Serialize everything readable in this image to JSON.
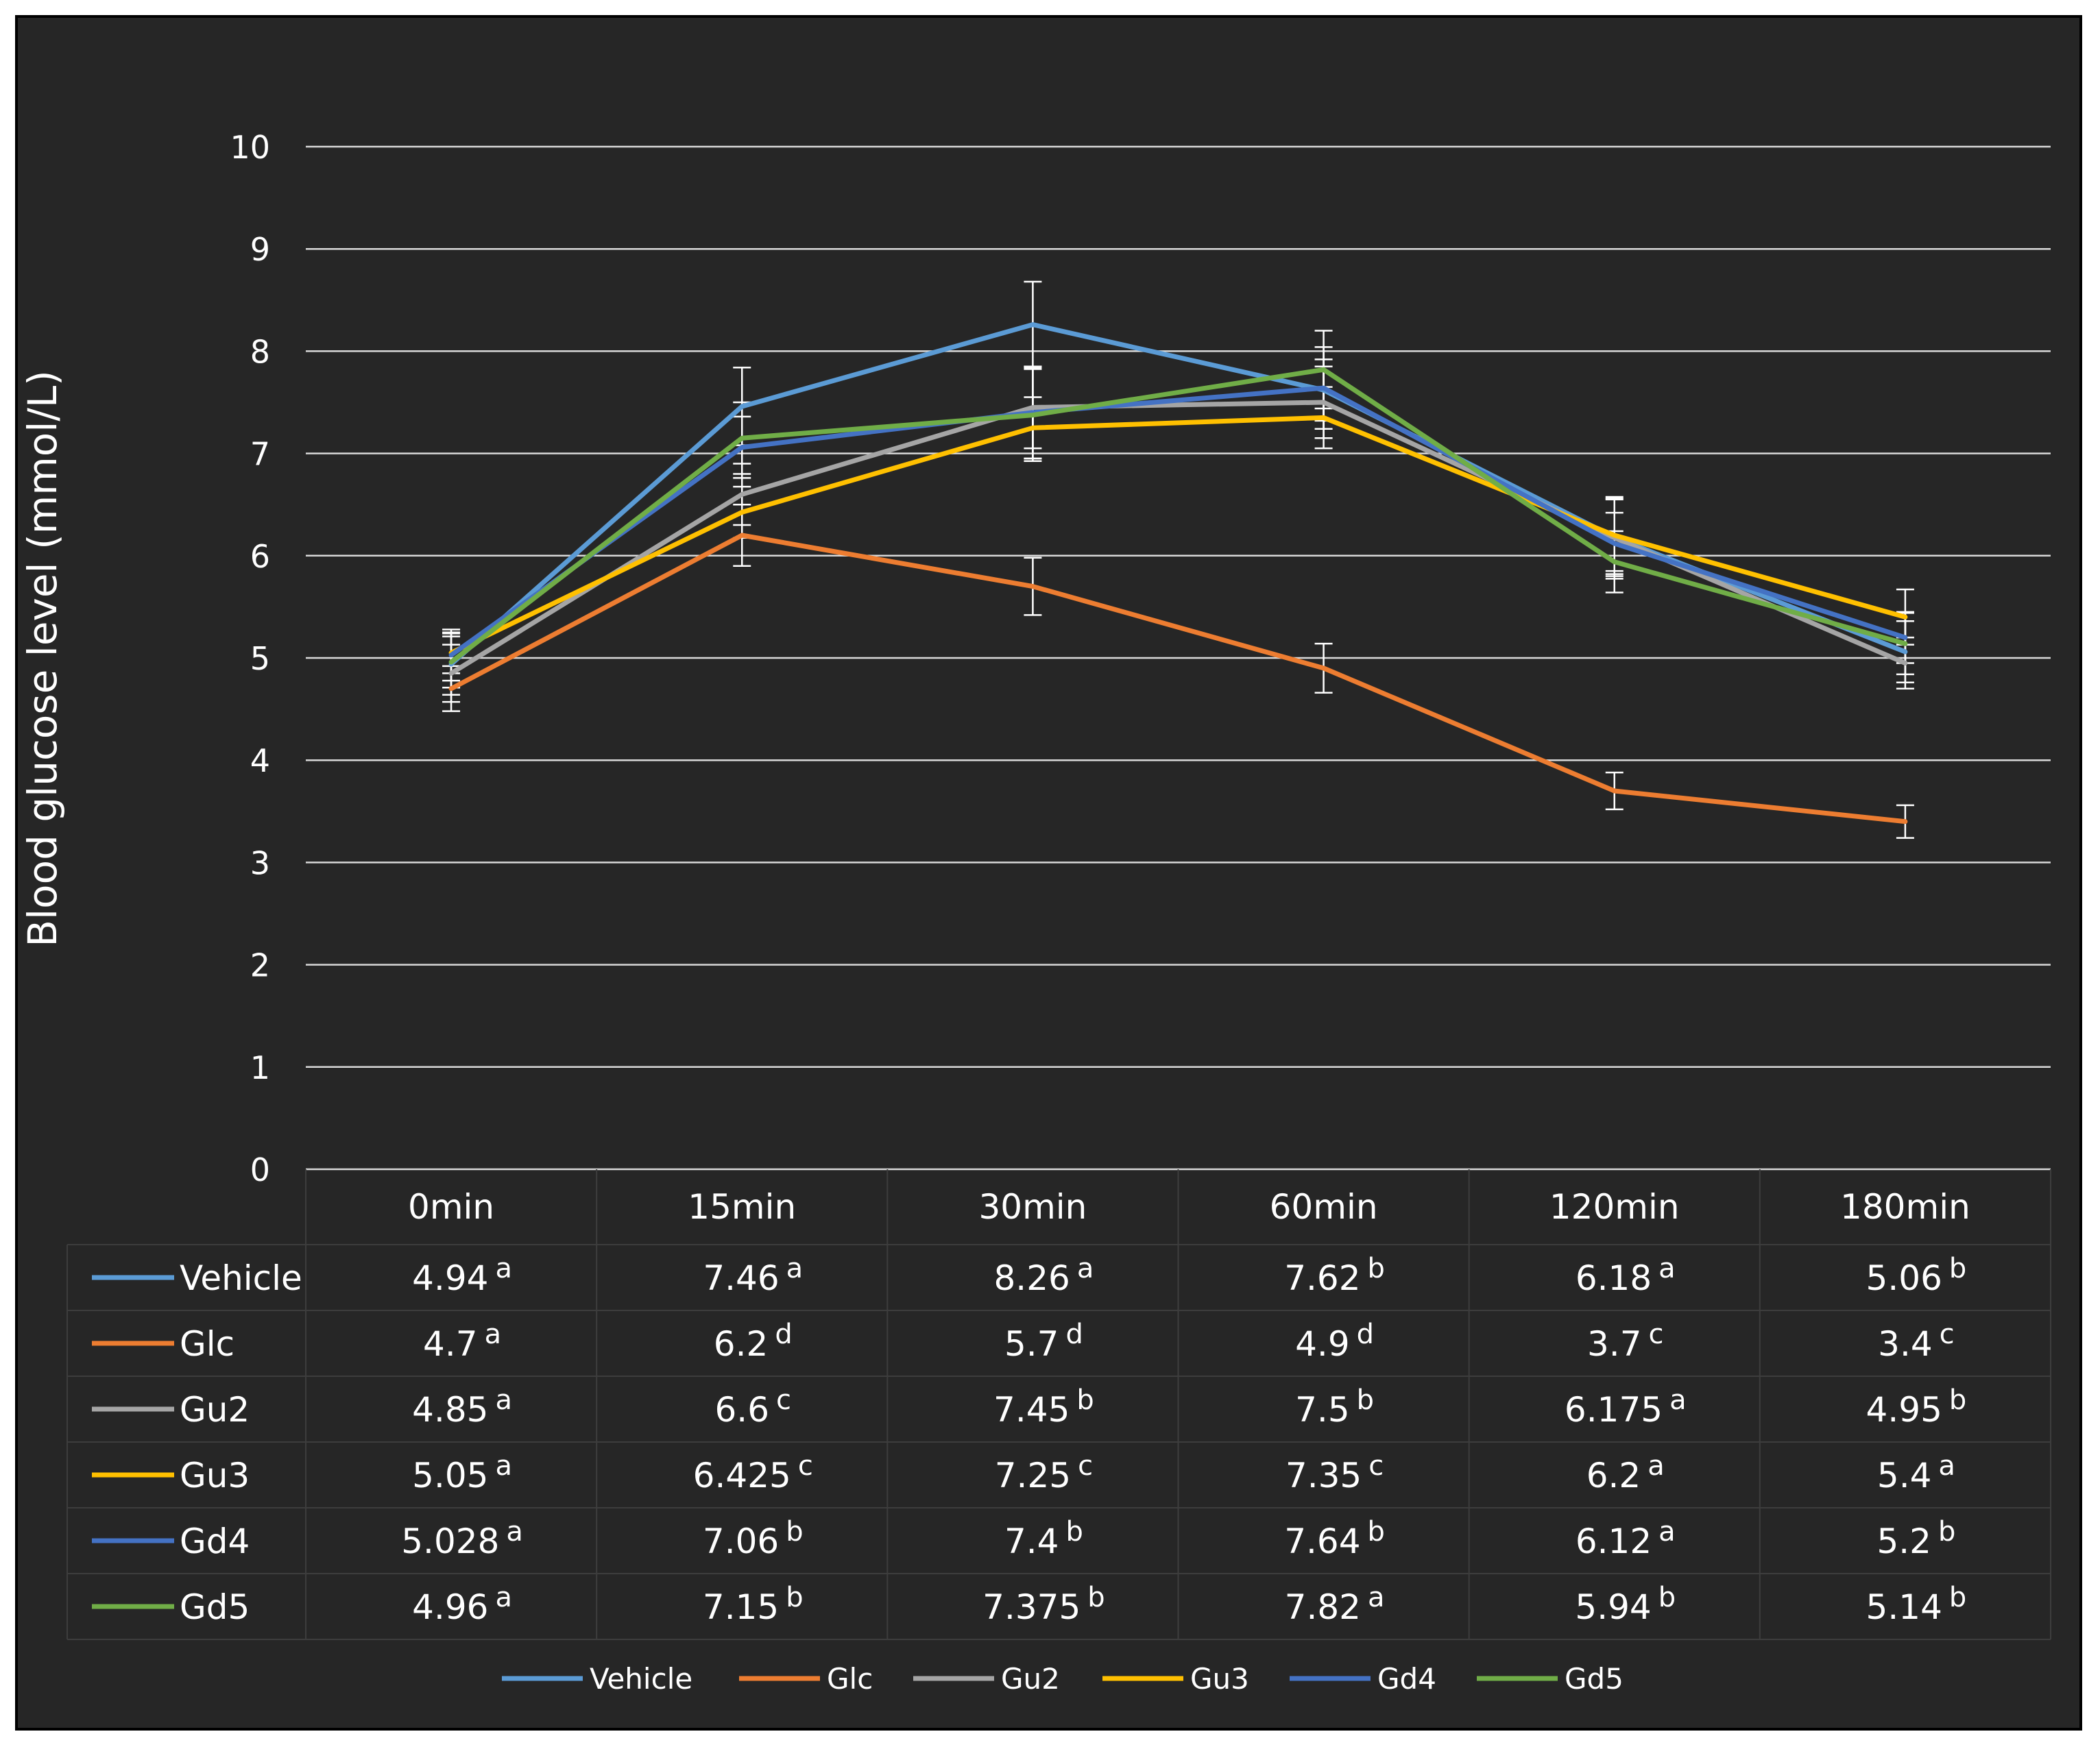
{
  "chart_data": {
    "type": "line",
    "title": "",
    "ylabel": "Blood glucose level (mmol/L)",
    "xlabel": "",
    "ylim": [
      0,
      10
    ],
    "yticks": [
      0,
      1,
      2,
      3,
      4,
      5,
      6,
      7,
      8,
      9,
      10
    ],
    "grid": true,
    "legend_position": "bottom",
    "categories": [
      "0min",
      "15min",
      "30min",
      "60min",
      "120min",
      "180min"
    ],
    "series": [
      {
        "name": "Vehicle",
        "color": "#5b9bd5",
        "values": [
          4.94,
          7.46,
          8.26,
          7.62,
          6.18,
          5.06
        ],
        "errors": [
          0.3,
          0.38,
          0.42,
          0.3,
          0.38,
          0.3
        ],
        "table": [
          "4.94",
          "7.46",
          "8.26",
          "7.62",
          "6.18",
          "5.06"
        ],
        "letters": [
          "a",
          "a",
          "a",
          "b",
          "a",
          "b"
        ]
      },
      {
        "name": "Glc",
        "color": "#ed7d31",
        "values": [
          4.7,
          6.2,
          5.7,
          4.9,
          3.7,
          3.4
        ],
        "errors": [
          0.22,
          0.3,
          0.28,
          0.24,
          0.18,
          0.16
        ],
        "table": [
          "4.7",
          "6.2",
          "5.7",
          "4.9",
          "3.7",
          "3.4"
        ],
        "letters": [
          "a",
          "d",
          "d",
          "d",
          "c",
          "c"
        ]
      },
      {
        "name": "Gu2",
        "color": "#a5a5a5",
        "values": [
          4.85,
          6.6,
          7.45,
          7.5,
          6.175,
          4.95
        ],
        "errors": [
          0.28,
          0.3,
          0.4,
          0.35,
          0.4,
          0.25
        ],
        "table": [
          "4.85",
          "6.6",
          "7.45",
          "7.5",
          "6.175",
          "4.95"
        ],
        "letters": [
          "a",
          "c",
          "b",
          "b",
          "a",
          "b"
        ]
      },
      {
        "name": "Gu3",
        "color": "#ffc000",
        "values": [
          5.05,
          6.425,
          7.25,
          7.35,
          6.2,
          5.4
        ],
        "errors": [
          0.2,
          0.25,
          0.3,
          0.3,
          0.35,
          0.27
        ],
        "table": [
          "5.05",
          "6.425",
          "7.25",
          "7.35",
          "6.2",
          "5.4"
        ],
        "letters": [
          "a",
          "c",
          "c",
          "c",
          "a",
          "a"
        ]
      },
      {
        "name": "Gd4",
        "color": "#4472c4",
        "values": [
          5.028,
          7.06,
          7.4,
          7.64,
          6.12,
          5.2
        ],
        "errors": [
          0.25,
          0.3,
          0.45,
          0.4,
          0.3,
          0.25
        ],
        "table": [
          "5.028",
          "7.06",
          "7.4",
          "7.64",
          "6.12",
          "5.2"
        ],
        "letters": [
          "a",
          "b",
          "b",
          "b",
          "a",
          "b"
        ]
      },
      {
        "name": "Gd5",
        "color": "#70ad47",
        "values": [
          4.96,
          7.15,
          7.375,
          7.82,
          5.94,
          5.14
        ],
        "errors": [
          0.25,
          0.35,
          0.45,
          0.38,
          0.3,
          0.3
        ],
        "table": [
          "4.96",
          "7.15",
          "7.375",
          "7.82",
          "5.94",
          "5.14"
        ],
        "letters": [
          "a",
          "b",
          "b",
          "a",
          "b",
          "b"
        ]
      }
    ]
  }
}
